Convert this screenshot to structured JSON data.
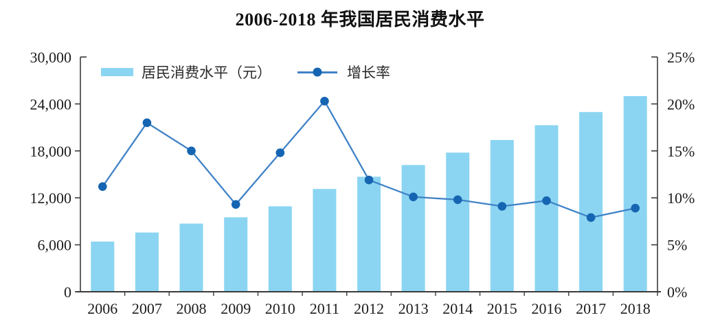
{
  "title": "2006-2018 年我国居民消费水平",
  "legend": {
    "bar_label": "居民消费水平（元）",
    "line_label": "增长率"
  },
  "colors": {
    "bar": "#8BD5F2",
    "line": "#3F82C6",
    "dot": "#1565B2",
    "axis": "#3A3A3A",
    "text": "#1C1C1C"
  },
  "chart_data": {
    "type": "bar",
    "title": "2006-2018 年我国居民消费水平",
    "categories": [
      "2006",
      "2007",
      "2008",
      "2009",
      "2010",
      "2011",
      "2012",
      "2013",
      "2014",
      "2015",
      "2016",
      "2017",
      "2018"
    ],
    "series": [
      {
        "name": "居民消费水平（元）",
        "type": "bar",
        "axis": "left",
        "values": [
          6416,
          7572,
          8707,
          9514,
          10919,
          13134,
          14699,
          16190,
          17778,
          19397,
          21285,
          22967,
          25002
        ]
      },
      {
        "name": "增长率",
        "type": "line",
        "axis": "right",
        "values": [
          11.2,
          18.0,
          15.0,
          9.3,
          14.8,
          20.3,
          11.9,
          10.1,
          9.8,
          9.1,
          9.7,
          7.9,
          8.9
        ]
      }
    ],
    "left_axis": {
      "label": "",
      "min": 0,
      "max": 30000,
      "step": 6000,
      "tick_labels": [
        "0",
        "6,000",
        "12,000",
        "18,000",
        "24,000",
        "30,000"
      ]
    },
    "right_axis": {
      "label": "",
      "min": 0,
      "max": 25,
      "step": 5,
      "tick_labels": [
        "0%",
        "5%",
        "10%",
        "15%",
        "20%",
        "25%"
      ]
    },
    "grid": false,
    "legend_position": "top-left-inside"
  }
}
